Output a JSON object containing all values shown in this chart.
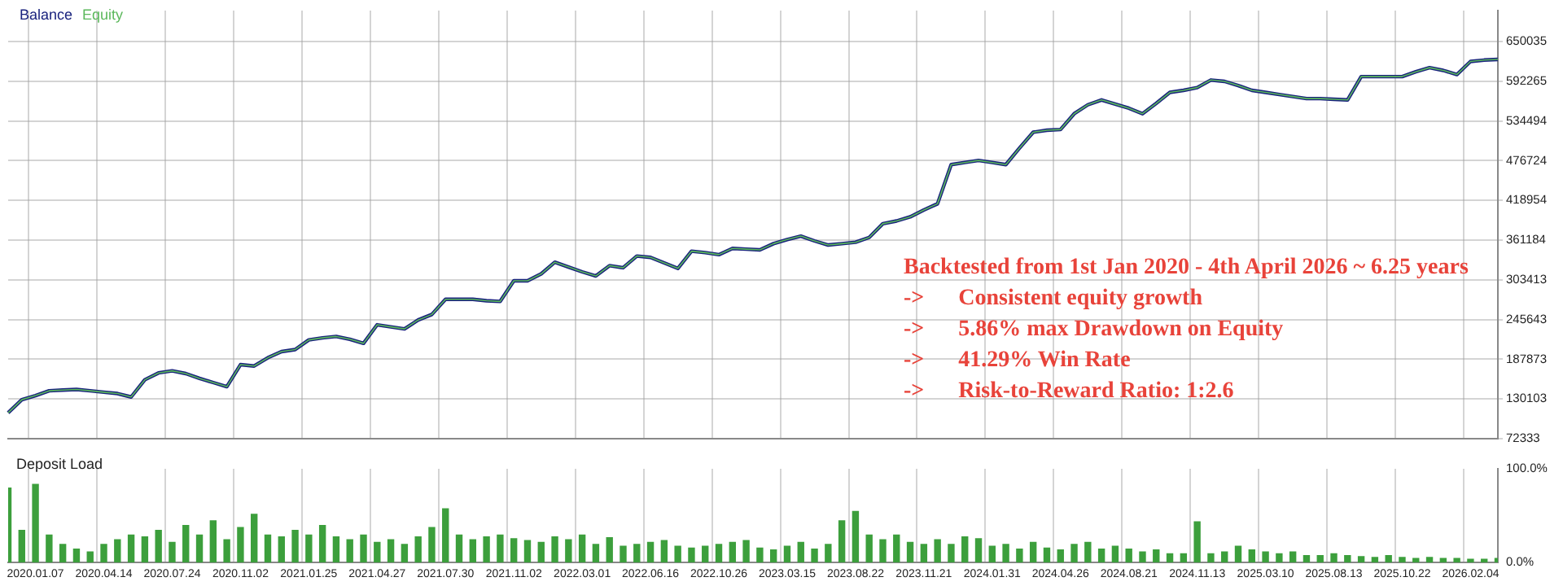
{
  "chart_data": [
    {
      "type": "line",
      "legend": "top left",
      "grid": true,
      "tick_labels": "y",
      "categories": [
        null,
        null,
        "2020.01.07",
        null,
        null,
        null,
        null,
        "2020.04.14",
        null,
        null,
        null,
        null,
        "2020.07.24",
        null,
        null,
        null,
        null,
        "2020.11.02",
        null,
        null,
        null,
        null,
        "2021.01.25",
        null,
        null,
        null,
        null,
        "2021.04.27",
        null,
        null,
        null,
        null,
        "2021.07.30",
        null,
        null,
        null,
        null,
        "2021.11.02",
        null,
        null,
        null,
        null,
        "2022.03.01",
        null,
        null,
        null,
        null,
        "2022.06.16",
        null,
        null,
        null,
        null,
        "2022.10.26",
        null,
        null,
        null,
        null,
        "2023.03.15",
        null,
        null,
        null,
        null,
        "2023.08.22",
        null,
        null,
        null,
        null,
        "2023.11.21",
        null,
        null,
        null,
        null,
        "2024.01.31",
        null,
        null,
        null,
        null,
        "2024.04.26",
        null,
        null,
        null,
        null,
        "2024.08.21",
        null,
        null,
        null,
        null,
        "2024.11.13",
        null,
        null,
        null,
        null,
        "2025.03.10",
        null,
        null,
        null,
        null,
        "2025.08.13",
        null,
        null,
        null,
        null,
        "2025.10.22",
        null,
        null,
        null,
        null,
        "2026.02.04",
        null,
        null
      ],
      "ylim": [
        72333,
        695000
      ],
      "yticks": [
        72333,
        130103,
        187873,
        245643,
        303413,
        361184,
        418954,
        476724,
        534494,
        592265,
        650035
      ],
      "series": [
        {
          "name": "Balance",
          "color": "#1a237e",
          "values": [
            110000,
            129000,
            135000,
            142000,
            143000,
            144000,
            142000,
            140000,
            138000,
            133000,
            158000,
            168000,
            171000,
            167000,
            160000,
            154000,
            148000,
            180000,
            178000,
            190000,
            199000,
            202000,
            216000,
            219000,
            221000,
            217000,
            211000,
            238000,
            235000,
            232000,
            245000,
            253000,
            275000,
            275000,
            275000,
            273000,
            272000,
            302000,
            302000,
            312000,
            329000,
            322000,
            315000,
            309000,
            324000,
            321000,
            338000,
            336000,
            328000,
            320000,
            345000,
            343000,
            340000,
            349000,
            348000,
            347000,
            356000,
            362000,
            367000,
            360000,
            354000,
            356000,
            358000,
            365000,
            385000,
            389000,
            395000,
            405000,
            414000,
            471000,
            474000,
            477000,
            474000,
            471000,
            495000,
            518000,
            521000,
            522000,
            545000,
            558000,
            565000,
            559000,
            553000,
            545000,
            560000,
            576000,
            579000,
            583000,
            594000,
            592000,
            586000,
            579000,
            576000,
            573000,
            570000,
            567000,
            567000,
            566000,
            565000,
            599000,
            599000,
            599000,
            599000,
            606000,
            612000,
            608000,
            602000,
            621000,
            623000,
            624000
          ]
        },
        {
          "name": "Equity",
          "color": "#5cb85c",
          "values": [
            110000,
            129000,
            135000,
            142000,
            143000,
            144000,
            142000,
            140000,
            138000,
            133000,
            158000,
            168000,
            171000,
            167000,
            160000,
            154000,
            148000,
            180000,
            178000,
            190000,
            199000,
            202000,
            216000,
            219000,
            221000,
            217000,
            211000,
            238000,
            235000,
            232000,
            245000,
            253000,
            275000,
            275000,
            275000,
            273000,
            272000,
            302000,
            302000,
            312000,
            329000,
            322000,
            315000,
            309000,
            324000,
            321000,
            338000,
            336000,
            328000,
            320000,
            345000,
            343000,
            340000,
            349000,
            348000,
            347000,
            356000,
            362000,
            367000,
            360000,
            354000,
            356000,
            358000,
            365000,
            385000,
            389000,
            395000,
            405000,
            414000,
            471000,
            474000,
            477000,
            474000,
            471000,
            495000,
            518000,
            521000,
            522000,
            545000,
            558000,
            565000,
            559000,
            553000,
            545000,
            560000,
            576000,
            579000,
            583000,
            594000,
            592000,
            586000,
            579000,
            576000,
            573000,
            570000,
            567000,
            567000,
            566000,
            565000,
            599000,
            599000,
            599000,
            599000,
            606000,
            612000,
            608000,
            602000,
            621000,
            623000,
            624000
          ]
        }
      ],
      "annotations": [
        "Backtested from 1st Jan 2020 - 4th April 2026 ~ 6.25 years",
        "->      Consistent equity growth",
        "->      5.86% max Drawdown on Equity",
        "->      41.29% Win Rate",
        "->      Risk-to-Reward Ratio: 1:2.6"
      ]
    },
    {
      "type": "bar",
      "title": "Deposit Load",
      "grid": "x",
      "color": "#3c9f3c",
      "categories": [
        null,
        null,
        "2020.01.07",
        null,
        null,
        null,
        null,
        "2020.04.14",
        null,
        null,
        null,
        null,
        "2020.07.24",
        null,
        null,
        null,
        null,
        "2020.11.02",
        null,
        null,
        null,
        null,
        "2021.01.25",
        null,
        null,
        null,
        null,
        "2021.04.27",
        null,
        null,
        null,
        null,
        "2021.07.30",
        null,
        null,
        null,
        null,
        "2021.11.02",
        null,
        null,
        null,
        null,
        "2022.03.01",
        null,
        null,
        null,
        null,
        "2022.06.16",
        null,
        null,
        null,
        null,
        "2022.10.26",
        null,
        null,
        null,
        null,
        "2023.03.15",
        null,
        null,
        null,
        null,
        "2023.08.22",
        null,
        null,
        null,
        null,
        "2023.11.21",
        null,
        null,
        null,
        null,
        "2024.01.31",
        null,
        null,
        null,
        null,
        "2024.04.26",
        null,
        null,
        null,
        null,
        "2024.08.21",
        null,
        null,
        null,
        null,
        "2024.11.13",
        null,
        null,
        null,
        null,
        "2025.03.10",
        null,
        null,
        null,
        null,
        "2025.08.13",
        null,
        null,
        null,
        null,
        "2025.10.22",
        null,
        null,
        null,
        null,
        "2026.02.04",
        null,
        null
      ],
      "values": [
        80,
        35,
        84,
        30,
        20,
        15,
        12,
        20,
        25,
        30,
        28,
        35,
        22,
        40,
        30,
        45,
        25,
        38,
        52,
        30,
        28,
        35,
        30,
        40,
        28,
        25,
        30,
        22,
        25,
        20,
        28,
        38,
        58,
        30,
        25,
        28,
        30,
        26,
        24,
        22,
        28,
        25,
        30,
        20,
        27,
        18,
        20,
        22,
        24,
        18,
        16,
        18,
        20,
        22,
        24,
        16,
        14,
        18,
        22,
        15,
        20,
        45,
        55,
        30,
        25,
        30,
        22,
        20,
        25,
        20,
        28,
        26,
        18,
        20,
        15,
        22,
        16,
        14,
        20,
        22,
        15,
        18,
        15,
        12,
        14,
        10,
        10,
        44,
        10,
        12,
        18,
        14,
        12,
        10,
        12,
        8,
        8,
        10,
        8,
        7,
        6,
        8,
        6,
        5,
        6,
        5,
        5,
        4,
        4,
        5
      ],
      "ylim": [
        0,
        100
      ],
      "yticks": [
        {
          "value": 100,
          "label": "100.0%"
        },
        {
          "value": 0,
          "label": "0.0%"
        }
      ]
    }
  ]
}
